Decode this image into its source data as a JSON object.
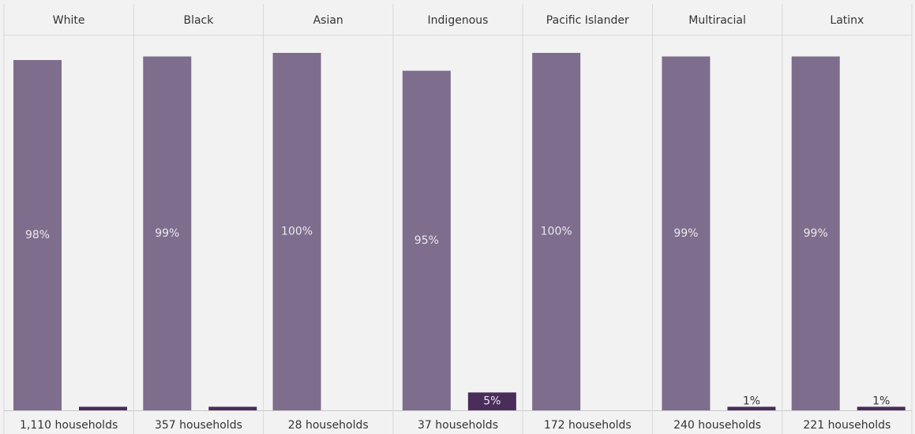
{
  "chart_data": {
    "type": "bar",
    "categories": [
      "White",
      "Black",
      "Asian",
      "Indigenous",
      "Pacific Islander",
      "Multiracial",
      "Latinx"
    ],
    "footers": [
      "1,110 households",
      "357 households",
      "28 households",
      "37 households",
      "172 households",
      "240 households",
      "221 households"
    ],
    "ylim": [
      0,
      100
    ],
    "series": [
      {
        "color": "#7e6d8c",
        "values": [
          98,
          99,
          100,
          95,
          100,
          99,
          99
        ],
        "value_labels": [
          "98%",
          "99%",
          "100%",
          "95%",
          "100%",
          "99%",
          "99%"
        ]
      },
      {
        "color": "#4a2d5a",
        "values": [
          1,
          1,
          0,
          5,
          0,
          1,
          1
        ],
        "value_labels": [
          null,
          null,
          null,
          "5%",
          null,
          "1%",
          "1%"
        ]
      }
    ]
  }
}
